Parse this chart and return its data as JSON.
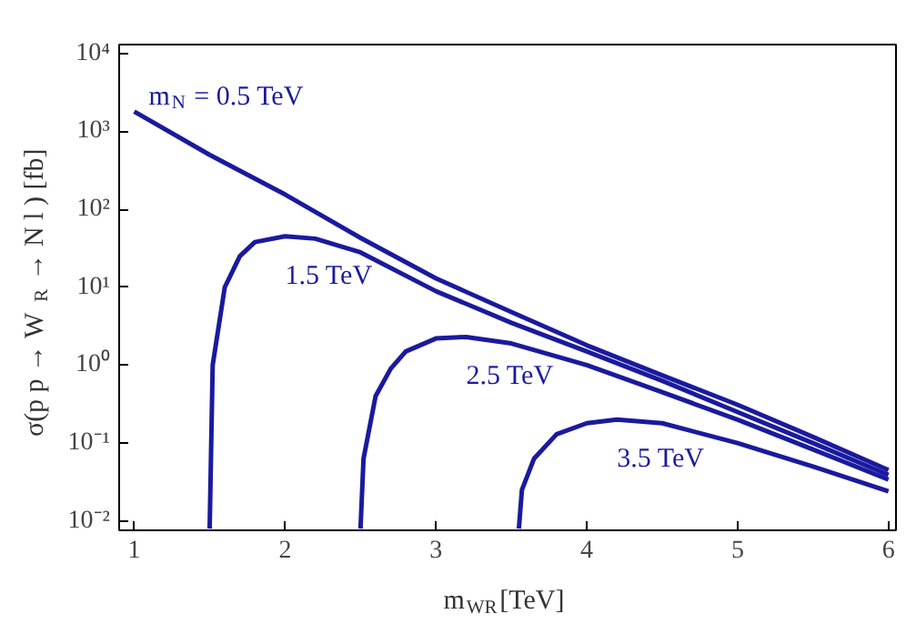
{
  "chart_data": {
    "type": "line",
    "xlabel": "m$_{WR}$[TeV]",
    "ylabel": "σ(p p → W$_{R}$ → N l ) [fb]",
    "log": "y",
    "grid": false,
    "legend": false,
    "line_style": "solid",
    "marker": "none",
    "xlim": [
      0.9,
      6.05
    ],
    "ylim": [
      0.0076,
      13000
    ],
    "xticks": [
      1,
      2,
      3,
      4,
      5,
      6
    ],
    "yticks": [
      {
        "value": 0.01,
        "label": "10⁻²"
      },
      {
        "value": 0.1,
        "label": "10⁻¹"
      },
      {
        "value": 1,
        "label": "10⁰"
      },
      {
        "value": 10,
        "label": "10¹"
      },
      {
        "value": 100,
        "label": "10²"
      },
      {
        "value": 1000,
        "label": "10³"
      },
      {
        "value": 10000,
        "label": "10⁴"
      }
    ],
    "series": [
      {
        "name": "m$_{N}$ = 0.5 TeV",
        "color": "#1a1a9e",
        "x": [
          1,
          1.5,
          2,
          2.5,
          3,
          3.5,
          4,
          4.5,
          5,
          5.5,
          6
        ],
        "values": [
          1800,
          500,
          155,
          43,
          13,
          4.8,
          1.8,
          0.74,
          0.31,
          0.12,
          0.045
        ]
      },
      {
        "name": "1.5 TeV",
        "color": "#1a1a9e",
        "x": [
          1.5,
          1.52,
          1.6,
          1.7,
          1.8,
          2.0,
          2.2,
          2.5,
          3,
          3.5,
          4,
          4.5,
          5,
          5.5,
          6
        ],
        "values": [
          0.008,
          1,
          10,
          25,
          38,
          45,
          42,
          28,
          8.9,
          3.5,
          1.5,
          0.63,
          0.25,
          0.1,
          0.039
        ]
      },
      {
        "name": "2.5 TeV",
        "color": "#1a1a9e",
        "x": [
          2.5,
          2.52,
          2.6,
          2.7,
          2.8,
          3.0,
          3.2,
          3.5,
          4,
          4.5,
          5,
          5.5,
          6
        ],
        "values": [
          0.008,
          0.063,
          0.4,
          0.9,
          1.5,
          2.2,
          2.3,
          1.9,
          1.0,
          0.45,
          0.2,
          0.083,
          0.034
        ]
      },
      {
        "name": "3.5 TeV",
        "color": "#1a1a9e",
        "x": [
          3.55,
          3.57,
          3.65,
          3.8,
          4.0,
          4.2,
          4.5,
          5,
          5.5,
          6
        ],
        "values": [
          0.008,
          0.025,
          0.063,
          0.13,
          0.18,
          0.2,
          0.18,
          0.1,
          0.05,
          0.024
        ]
      }
    ]
  }
}
